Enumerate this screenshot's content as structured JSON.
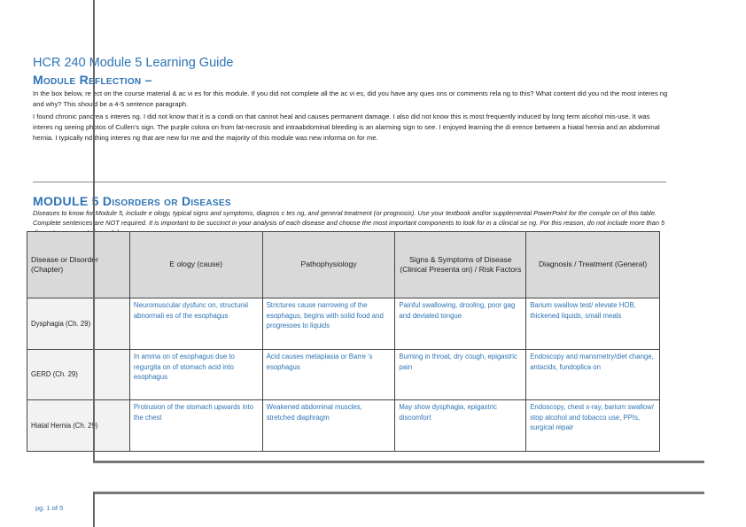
{
  "title": "HCR 240 Module 5 Learning Guide",
  "reflection": {
    "heading": "Module Reflection –",
    "prompt": "In the box below, re ect on the course material & ac vi es for this module.  If you did not complete all the ac vi es, did you have any ques ons or comments rela ng to this?  What content did you nd the most interes ng and why?  This should be a 4-5 sentence paragraph.",
    "answer": "I found chronic pancrea s interes ng. I did not know that it is a condi on that cannot heal and causes permanent damage. I also did not know this is most frequently induced by long term alcohol mis-use. It was interes ng seeing photos of Cullen’s sign. The purple colora on from fat-necrosis and intraabdominal bleeding is an alarming sign to see. I enjoyed learning the di erence between a hiatal hernia and an abdominal hernia. I typically nd thing interes ng that are new for me and the majority of this module was new informa on for me."
  },
  "disorders": {
    "heading": "MODULE 5 Disorders or Diseases",
    "instructions": "Diseases to know for Module 5, include e ology, typical signs and symptoms, diagnos c tes ng, and general treatment (or prognosis).  Use your textbook and/or supplemental PowerPoint for the comple on of this table.  Complete sentences are NOT required.   It is important to be succinct in your analysis of each disease and choose the most important components to look for in a clinical se ng. For this reason, do not include more than 5 di erent components in each box.",
    "columns": [
      "Disease or Disorder (Chapter)",
      "E ology (cause)",
      "Pathophysiology",
      "Signs & Symptoms of Disease (Clinical Presenta on) / Risk Factors",
      "Diagnosis / Treatment (General)"
    ],
    "rows": [
      [
        "Dysphagia (Ch. 29)",
        "Neuromuscular dysfunc on, structural abnormali es of the esophagus",
        "Strictures cause narrowing of the esophagus, begins with solid food and progresses to liquids",
        "Painful swallowing, drooling, poor gag and deviated tongue",
        "Barium swallow test/ elevate HOB, thickened liquids, small meals"
      ],
      [
        "GERD (Ch. 29)",
        "In amma on of esophagus due to regurgita on of stomach acid into esophagus",
        "Acid causes metaplasia or Barre 's esophagus",
        "Burning in throat, dry cough, epigastric pain",
        "Endoscopy and manometry/diet change, antacids, fundoplica on"
      ],
      [
        "Hiatal Hernia (Ch. 29)",
        "Protrusion of the stomach upwards into the chest",
        "Weakened abdominal muscles, stretched diaphragm",
        "May show dysphagia, epigastric discomfort",
        "Endoscopy, chest x-ray, barium swallow/ stop alcohol and tobacco use, PPIs, surgical repair"
      ]
    ]
  },
  "footer": {
    "page": "pg. 1 of 5"
  },
  "colors": {
    "accent": "#2e74b5"
  }
}
